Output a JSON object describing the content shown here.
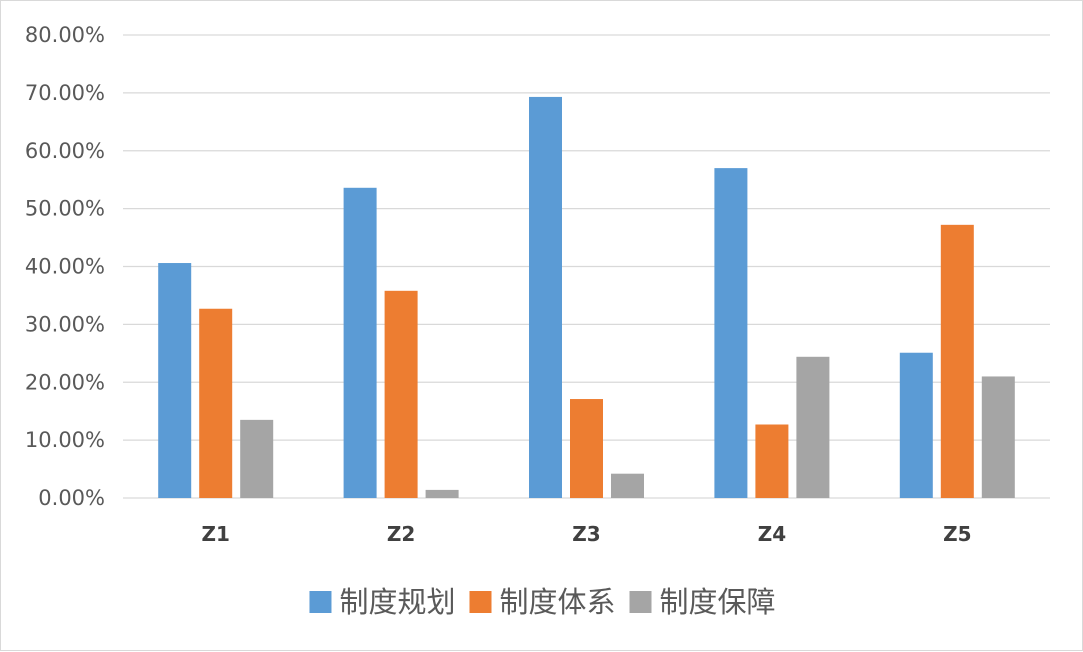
{
  "chart_data": {
    "type": "bar",
    "categories": [
      "Z1",
      "Z2",
      "Z3",
      "Z4",
      "Z5"
    ],
    "series": [
      {
        "name": "制度规划",
        "color": "#5b9bd5",
        "values": [
          40.6,
          53.6,
          69.3,
          57.0,
          25.1
        ]
      },
      {
        "name": "制度体系",
        "color": "#ed7d31",
        "values": [
          32.7,
          35.8,
          17.1,
          12.7,
          47.2
        ]
      },
      {
        "name": "制度保障",
        "color": "#a5a5a5",
        "values": [
          13.5,
          1.4,
          4.2,
          24.4,
          21.0
        ]
      }
    ],
    "yticks": [
      "0.00%",
      "10.00%",
      "20.00%",
      "30.00%",
      "40.00%",
      "50.00%",
      "60.00%",
      "70.00%",
      "80.00%"
    ],
    "ylim": [
      0,
      80
    ],
    "grid": true,
    "legend_position": "bottom",
    "gridline_color": "#d9d9d9",
    "title": "",
    "xlabel": "",
    "ylabel": ""
  }
}
